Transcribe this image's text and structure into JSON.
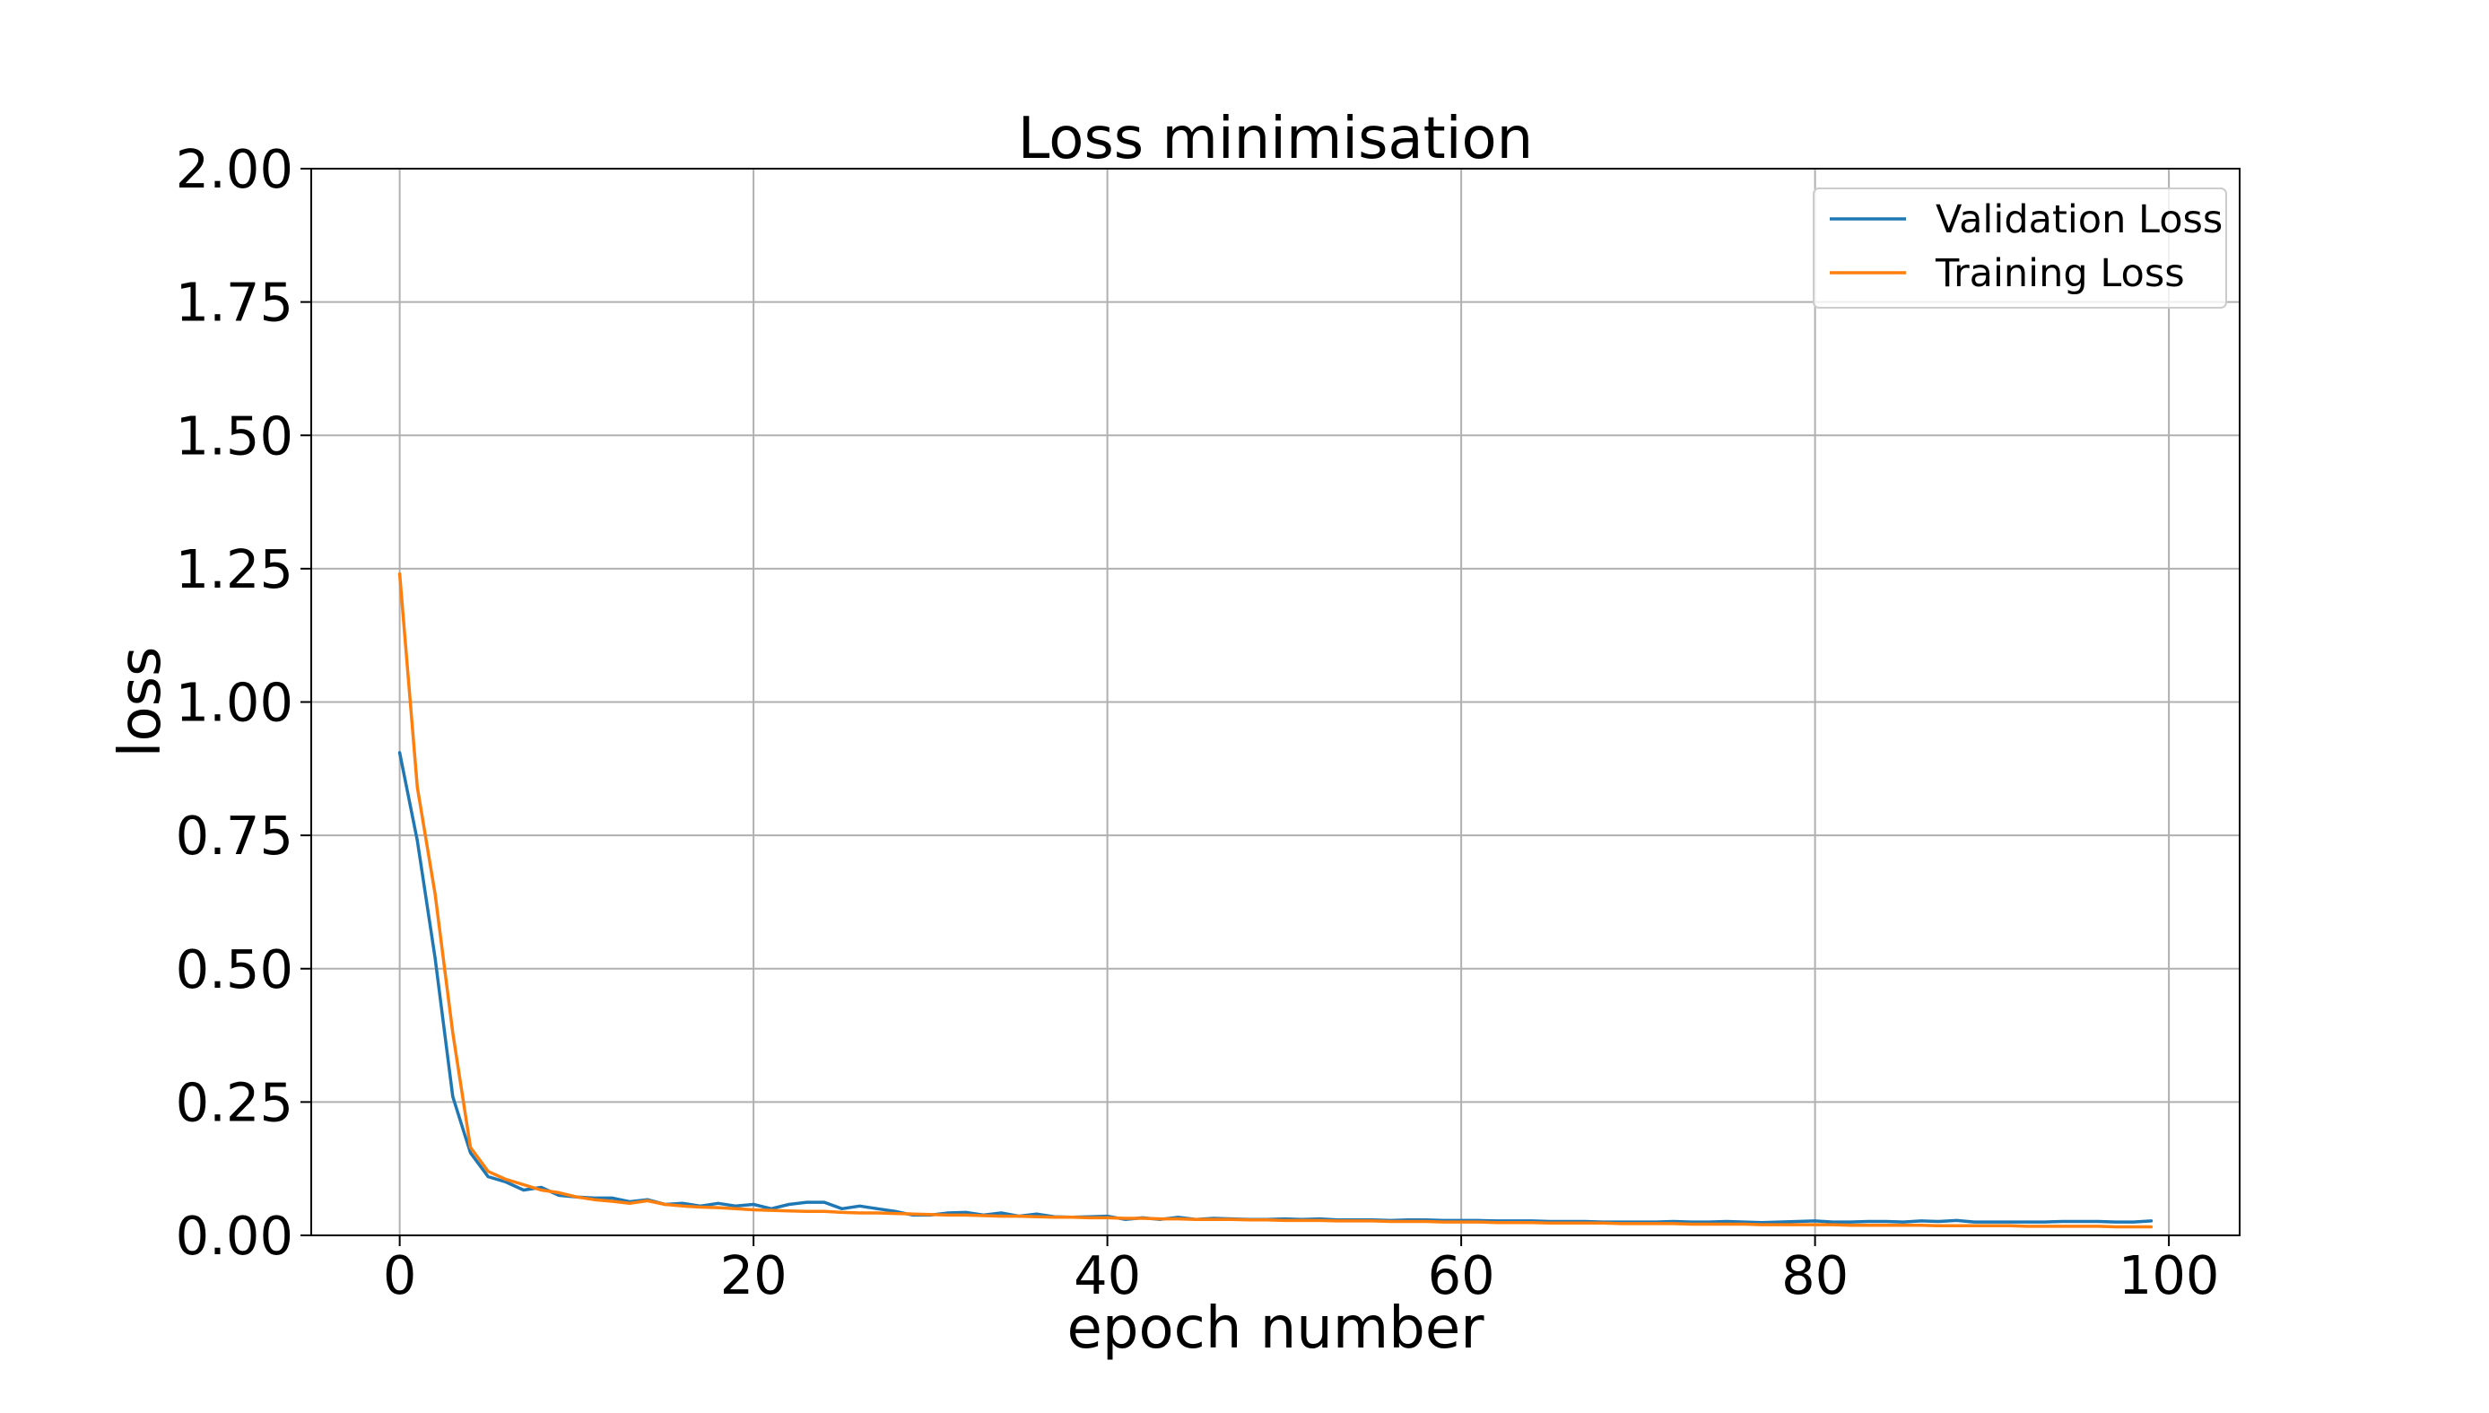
{
  "chart_data": {
    "type": "line",
    "title": "Loss minimisation",
    "xlabel": "epoch number",
    "ylabel": "loss",
    "xlim": [
      -5,
      104
    ],
    "ylim": [
      0,
      2
    ],
    "xticks": [
      0,
      20,
      40,
      60,
      80,
      100
    ],
    "xtick_labels": [
      "0",
      "20",
      "40",
      "60",
      "80",
      "100"
    ],
    "yticks": [
      0,
      0.25,
      0.5,
      0.75,
      1.0,
      1.25,
      1.5,
      1.75,
      2.0
    ],
    "ytick_labels": [
      "0.00",
      "0.25",
      "0.50",
      "0.75",
      "1.00",
      "1.25",
      "1.50",
      "1.75",
      "2.00"
    ],
    "grid": true,
    "legend_position": "top-right",
    "x": [
      0,
      1,
      2,
      3,
      4,
      5,
      6,
      7,
      8,
      9,
      10,
      11,
      12,
      13,
      14,
      15,
      16,
      17,
      18,
      19,
      20,
      21,
      22,
      23,
      24,
      25,
      26,
      27,
      28,
      29,
      30,
      31,
      32,
      33,
      34,
      35,
      36,
      37,
      38,
      39,
      40,
      41,
      42,
      43,
      44,
      45,
      46,
      47,
      48,
      49,
      50,
      51,
      52,
      53,
      54,
      55,
      56,
      57,
      58,
      59,
      60,
      61,
      62,
      63,
      64,
      65,
      66,
      67,
      68,
      69,
      70,
      71,
      72,
      73,
      74,
      75,
      76,
      77,
      78,
      79,
      80,
      81,
      82,
      83,
      84,
      85,
      86,
      87,
      88,
      89,
      90,
      91,
      92,
      93,
      94,
      95,
      96,
      97,
      98,
      99
    ],
    "series": [
      {
        "name": "Validation Loss",
        "color": "#1f77b4",
        "values": [
          0.905,
          0.74,
          0.52,
          0.26,
          0.155,
          0.11,
          0.1,
          0.085,
          0.09,
          0.075,
          0.072,
          0.07,
          0.07,
          0.063,
          0.067,
          0.058,
          0.06,
          0.055,
          0.06,
          0.055,
          0.058,
          0.05,
          0.058,
          0.062,
          0.062,
          0.05,
          0.055,
          0.05,
          0.045,
          0.038,
          0.038,
          0.042,
          0.043,
          0.038,
          0.042,
          0.036,
          0.04,
          0.035,
          0.034,
          0.035,
          0.036,
          0.03,
          0.033,
          0.03,
          0.034,
          0.03,
          0.032,
          0.031,
          0.03,
          0.03,
          0.031,
          0.03,
          0.031,
          0.029,
          0.029,
          0.029,
          0.028,
          0.029,
          0.029,
          0.028,
          0.028,
          0.028,
          0.027,
          0.027,
          0.027,
          0.026,
          0.026,
          0.026,
          0.025,
          0.025,
          0.025,
          0.025,
          0.026,
          0.025,
          0.025,
          0.026,
          0.025,
          0.024,
          0.025,
          0.026,
          0.027,
          0.025,
          0.025,
          0.026,
          0.026,
          0.025,
          0.027,
          0.026,
          0.028,
          0.025,
          0.025,
          0.025,
          0.025,
          0.025,
          0.026,
          0.026,
          0.026,
          0.025,
          0.025,
          0.027
        ]
      },
      {
        "name": "Training Loss",
        "color": "#ff7f0e",
        "values": [
          1.24,
          0.84,
          0.64,
          0.38,
          0.165,
          0.12,
          0.105,
          0.095,
          0.085,
          0.08,
          0.072,
          0.067,
          0.064,
          0.06,
          0.065,
          0.058,
          0.055,
          0.053,
          0.052,
          0.05,
          0.048,
          0.047,
          0.046,
          0.045,
          0.045,
          0.043,
          0.042,
          0.042,
          0.041,
          0.04,
          0.039,
          0.038,
          0.038,
          0.037,
          0.036,
          0.036,
          0.035,
          0.034,
          0.034,
          0.033,
          0.033,
          0.032,
          0.032,
          0.031,
          0.031,
          0.03,
          0.03,
          0.03,
          0.029,
          0.029,
          0.028,
          0.028,
          0.028,
          0.027,
          0.027,
          0.027,
          0.026,
          0.026,
          0.026,
          0.025,
          0.025,
          0.025,
          0.024,
          0.024,
          0.024,
          0.023,
          0.023,
          0.023,
          0.023,
          0.022,
          0.022,
          0.022,
          0.022,
          0.021,
          0.021,
          0.021,
          0.021,
          0.02,
          0.02,
          0.02,
          0.02,
          0.02,
          0.019,
          0.019,
          0.019,
          0.019,
          0.019,
          0.018,
          0.018,
          0.018,
          0.018,
          0.018,
          0.017,
          0.017,
          0.017,
          0.017,
          0.017,
          0.016,
          0.016,
          0.016
        ]
      }
    ]
  }
}
